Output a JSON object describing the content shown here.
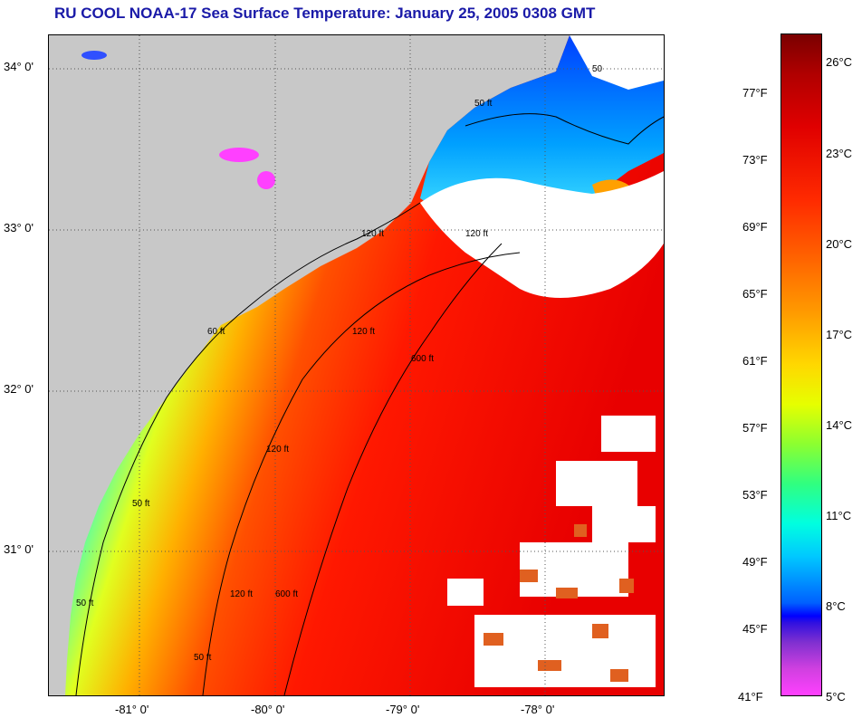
{
  "title": "RU COOL  NOAA-17  Sea Surface Temperature:  January 25, 2005 0308 GMT",
  "map": {
    "lat_labels": [
      "34° 0'",
      "33° 0'",
      "32° 0'",
      "31° 0'"
    ],
    "lon_labels": [
      "-81° 0'",
      "-80° 0'",
      "-79° 0'",
      "-78° 0'"
    ],
    "contour_labels": [
      "50 ft",
      "50 ft",
      "50 ft",
      "60 ft",
      "120 ft",
      "120 ft",
      "120 ft",
      "600 ft",
      "600 ft",
      "120 ft",
      "50 ft",
      "120 ft",
      "50"
    ],
    "colors": {
      "land": "#c8c8c8",
      "cloud": "#ffffff",
      "frame": "#000000"
    }
  },
  "colorbar": {
    "fahrenheit_labels": [
      "77°F",
      "73°F",
      "69°F",
      "65°F",
      "61°F",
      "57°F",
      "53°F",
      "49°F",
      "45°F",
      "41°F"
    ],
    "celsius_labels": [
      "26°C",
      "23°C",
      "20°C",
      "17°C",
      "14°C",
      "11°C",
      "8°C",
      "5°C"
    ],
    "range_f": [
      41,
      79
    ],
    "range_c": [
      5,
      27
    ]
  }
}
